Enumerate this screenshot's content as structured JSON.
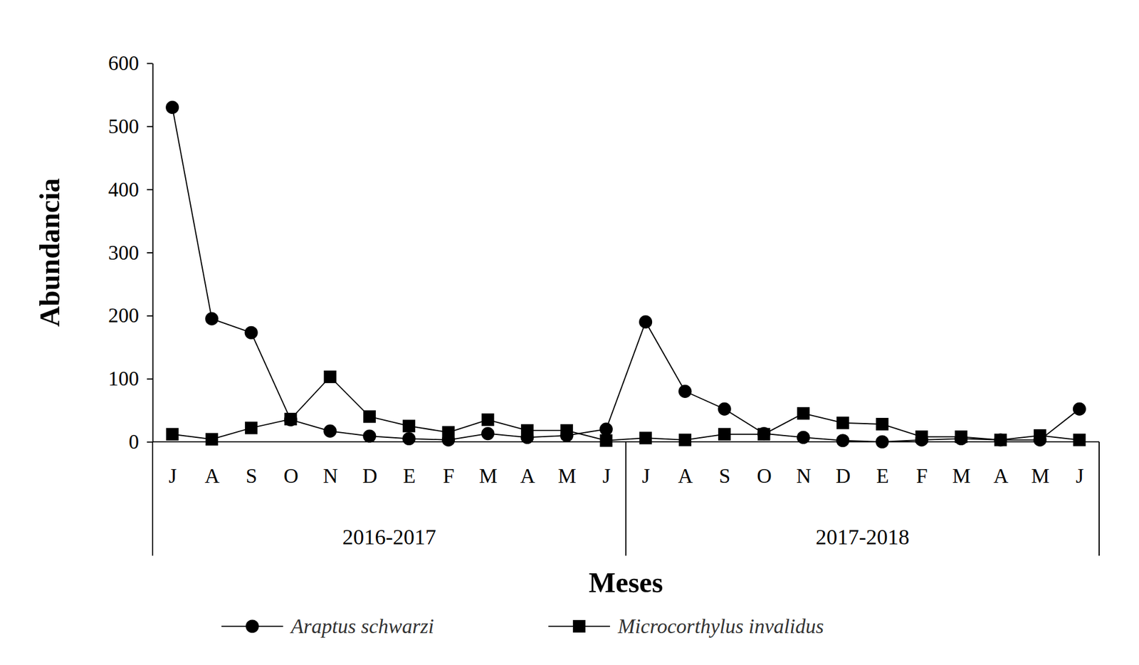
{
  "chart_data": {
    "type": "line",
    "x_label": "Meses",
    "y_label": "Abundancia",
    "categories": [
      "J",
      "A",
      "S",
      "O",
      "N",
      "D",
      "E",
      "F",
      "M",
      "A",
      "M",
      "J",
      "J",
      "A",
      "S",
      "O",
      "N",
      "D",
      "E",
      "F",
      "M",
      "A",
      "M",
      "J"
    ],
    "groups": [
      "2016-2017",
      "2017-2018"
    ],
    "series": [
      {
        "name": "Araptus schwarzi",
        "color": "#000000",
        "marker": "circle",
        "line_style": "solid",
        "values": [
          530,
          195,
          173,
          35,
          17,
          9,
          5,
          3,
          13,
          7,
          10,
          20,
          190,
          80,
          52,
          13,
          7,
          2,
          0,
          3,
          5,
          3,
          3,
          52
        ]
      },
      {
        "name": "Microcorthylus invalidus",
        "color": "#000000",
        "marker": "square",
        "line_style": "solid",
        "values": [
          12,
          4,
          22,
          36,
          103,
          40,
          25,
          15,
          35,
          18,
          18,
          2,
          6,
          3,
          12,
          12,
          45,
          30,
          28,
          8,
          8,
          3,
          10,
          3
        ]
      }
    ],
    "ylim": [
      0,
      600
    ],
    "yticks": [
      0,
      100,
      200,
      300,
      400,
      500,
      600
    ],
    "grid": false,
    "legend": "bottom"
  }
}
